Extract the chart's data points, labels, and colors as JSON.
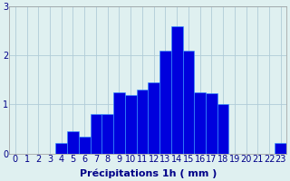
{
  "categories": [
    0,
    1,
    2,
    3,
    4,
    5,
    6,
    7,
    8,
    9,
    10,
    11,
    12,
    13,
    14,
    15,
    16,
    17,
    18,
    19,
    20,
    21,
    22,
    23
  ],
  "values": [
    0,
    0,
    0,
    0,
    0.22,
    0.45,
    0.35,
    0.8,
    0.8,
    1.25,
    1.2,
    1.3,
    1.45,
    2.1,
    2.6,
    2.1,
    1.25,
    1.22,
    1.0,
    0,
    0,
    0,
    0,
    0.22
  ],
  "bar_color": "#0000dd",
  "bar_edge_color": "#3399ff",
  "xlabel": "Précipitations 1h ( mm )",
  "ylim": [
    0,
    3
  ],
  "ytick_labels": [
    "0",
    "1",
    "2",
    "3"
  ],
  "yticks": [
    0,
    1,
    2,
    3
  ],
  "background_color": "#dff0f0",
  "grid_color": "#b0ccd8",
  "xlabel_fontsize": 8,
  "tick_fontsize": 7,
  "label_color": "#000088",
  "bar_width": 1.0
}
